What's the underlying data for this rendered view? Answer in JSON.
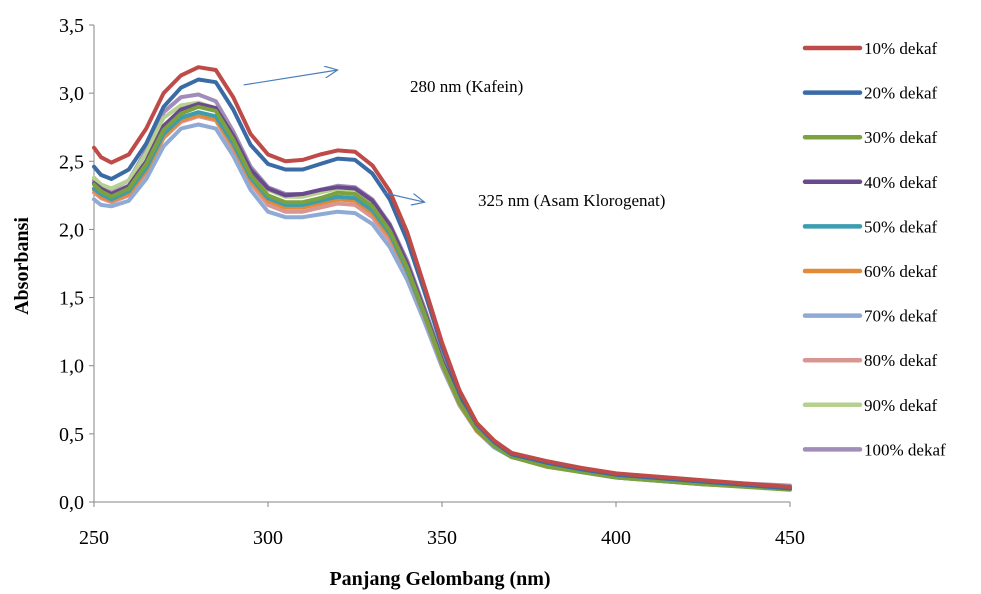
{
  "chart_data": {
    "type": "line",
    "title": "",
    "xlabel": "Panjang Gelombang (nm)",
    "ylabel": "Absorbansi",
    "xlim": [
      250,
      450
    ],
    "ylim": [
      0,
      3.5
    ],
    "x_ticks": [
      250,
      300,
      350,
      400,
      450
    ],
    "y_ticks": [
      0,
      0.5,
      1.0,
      1.5,
      2.0,
      2.5,
      3.0,
      3.5
    ],
    "x_tick_labels": [
      "250",
      "300",
      "350",
      "400",
      "450"
    ],
    "y_tick_labels": [
      "0,0",
      "0,5",
      "1,0",
      "1,5",
      "2,0",
      "2,5",
      "3,0",
      "3,5"
    ],
    "grid": false,
    "legend_position": "right",
    "x": [
      250,
      252,
      255,
      260,
      265,
      270,
      275,
      280,
      285,
      290,
      295,
      300,
      305,
      310,
      315,
      320,
      325,
      330,
      335,
      340,
      345,
      350,
      355,
      360,
      365,
      370,
      380,
      390,
      400,
      425,
      450
    ],
    "series": [
      {
        "name": "10% dekaf",
        "color": "#be4b48",
        "values": [
          2.6,
          2.53,
          2.49,
          2.55,
          2.74,
          3.0,
          3.13,
          3.19,
          3.17,
          2.97,
          2.7,
          2.55,
          2.5,
          2.51,
          2.55,
          2.58,
          2.57,
          2.47,
          2.28,
          1.98,
          1.58,
          1.17,
          0.82,
          0.58,
          0.45,
          0.36,
          0.3,
          0.25,
          0.21,
          0.16,
          0.11
        ]
      },
      {
        "name": "20% dekaf",
        "color": "#3a6ba5",
        "values": [
          2.46,
          2.4,
          2.37,
          2.44,
          2.63,
          2.9,
          3.04,
          3.1,
          3.08,
          2.88,
          2.62,
          2.48,
          2.44,
          2.44,
          2.48,
          2.52,
          2.51,
          2.41,
          2.22,
          1.92,
          1.54,
          1.14,
          0.8,
          0.57,
          0.44,
          0.35,
          0.29,
          0.24,
          0.2,
          0.15,
          0.1
        ]
      },
      {
        "name": "30% dekaf",
        "color": "#7ba23f",
        "values": [
          2.33,
          2.28,
          2.24,
          2.3,
          2.48,
          2.73,
          2.85,
          2.9,
          2.87,
          2.66,
          2.4,
          2.25,
          2.2,
          2.2,
          2.23,
          2.27,
          2.26,
          2.17,
          1.99,
          1.72,
          1.38,
          1.02,
          0.73,
          0.53,
          0.41,
          0.33,
          0.26,
          0.22,
          0.18,
          0.13,
          0.09
        ]
      },
      {
        "name": "40% dekaf",
        "color": "#6a4a8c",
        "values": [
          2.34,
          2.3,
          2.26,
          2.32,
          2.5,
          2.76,
          2.88,
          2.92,
          2.89,
          2.69,
          2.44,
          2.3,
          2.25,
          2.26,
          2.29,
          2.31,
          2.3,
          2.21,
          2.03,
          1.75,
          1.4,
          1.04,
          0.75,
          0.54,
          0.42,
          0.34,
          0.27,
          0.22,
          0.19,
          0.14,
          0.1
        ]
      },
      {
        "name": "50% dekaf",
        "color": "#3c9cb0",
        "values": [
          2.3,
          2.26,
          2.22,
          2.28,
          2.45,
          2.7,
          2.82,
          2.86,
          2.83,
          2.63,
          2.38,
          2.23,
          2.18,
          2.18,
          2.21,
          2.24,
          2.23,
          2.14,
          1.97,
          1.7,
          1.37,
          1.02,
          0.73,
          0.53,
          0.41,
          0.33,
          0.27,
          0.22,
          0.18,
          0.13,
          0.1
        ]
      },
      {
        "name": "60% dekaf",
        "color": "#e38a39",
        "values": [
          2.29,
          2.24,
          2.21,
          2.26,
          2.43,
          2.68,
          2.8,
          2.84,
          2.81,
          2.61,
          2.36,
          2.21,
          2.16,
          2.16,
          2.19,
          2.22,
          2.21,
          2.12,
          1.95,
          1.69,
          1.36,
          1.01,
          0.72,
          0.52,
          0.41,
          0.33,
          0.26,
          0.22,
          0.18,
          0.13,
          0.1
        ]
      },
      {
        "name": "70% dekaf",
        "color": "#8faad4",
        "values": [
          2.22,
          2.18,
          2.17,
          2.21,
          2.37,
          2.61,
          2.74,
          2.77,
          2.74,
          2.54,
          2.29,
          2.13,
          2.09,
          2.09,
          2.11,
          2.13,
          2.12,
          2.04,
          1.87,
          1.63,
          1.32,
          0.99,
          0.71,
          0.52,
          0.4,
          0.33,
          0.27,
          0.22,
          0.19,
          0.14,
          0.11
        ]
      },
      {
        "name": "80% dekaf",
        "color": "#d99592",
        "values": [
          2.27,
          2.23,
          2.2,
          2.25,
          2.42,
          2.67,
          2.79,
          2.83,
          2.8,
          2.59,
          2.34,
          2.18,
          2.13,
          2.13,
          2.16,
          2.19,
          2.18,
          2.09,
          1.92,
          1.67,
          1.35,
          1.01,
          0.72,
          0.52,
          0.41,
          0.33,
          0.27,
          0.22,
          0.19,
          0.14,
          0.11
        ]
      },
      {
        "name": "90% dekaf",
        "color": "#b6d08f",
        "values": [
          2.38,
          2.33,
          2.3,
          2.36,
          2.56,
          2.82,
          2.91,
          2.93,
          2.89,
          2.69,
          2.44,
          2.29,
          2.24,
          2.24,
          2.27,
          2.3,
          2.29,
          2.2,
          2.02,
          1.74,
          1.4,
          1.04,
          0.74,
          0.54,
          0.42,
          0.34,
          0.28,
          0.23,
          0.19,
          0.14,
          0.11
        ]
      },
      {
        "name": "100% dekaf",
        "color": "#a08db8",
        "values": [
          2.36,
          2.32,
          2.29,
          2.36,
          2.58,
          2.86,
          2.97,
          2.99,
          2.94,
          2.72,
          2.46,
          2.31,
          2.26,
          2.26,
          2.29,
          2.32,
          2.31,
          2.22,
          2.04,
          1.77,
          1.42,
          1.06,
          0.76,
          0.55,
          0.43,
          0.35,
          0.28,
          0.24,
          0.2,
          0.15,
          0.12
        ]
      }
    ],
    "annotations": [
      {
        "text": "280 nm (Kafein)",
        "arrow_from": [
          293,
          3.06
        ],
        "arrow_to": [
          320,
          3.17
        ]
      },
      {
        "text": "325 nm  (Asam Klorogenat)",
        "arrow_from": [
          333,
          2.27
        ],
        "arrow_to": [
          345,
          2.2
        ]
      }
    ]
  }
}
